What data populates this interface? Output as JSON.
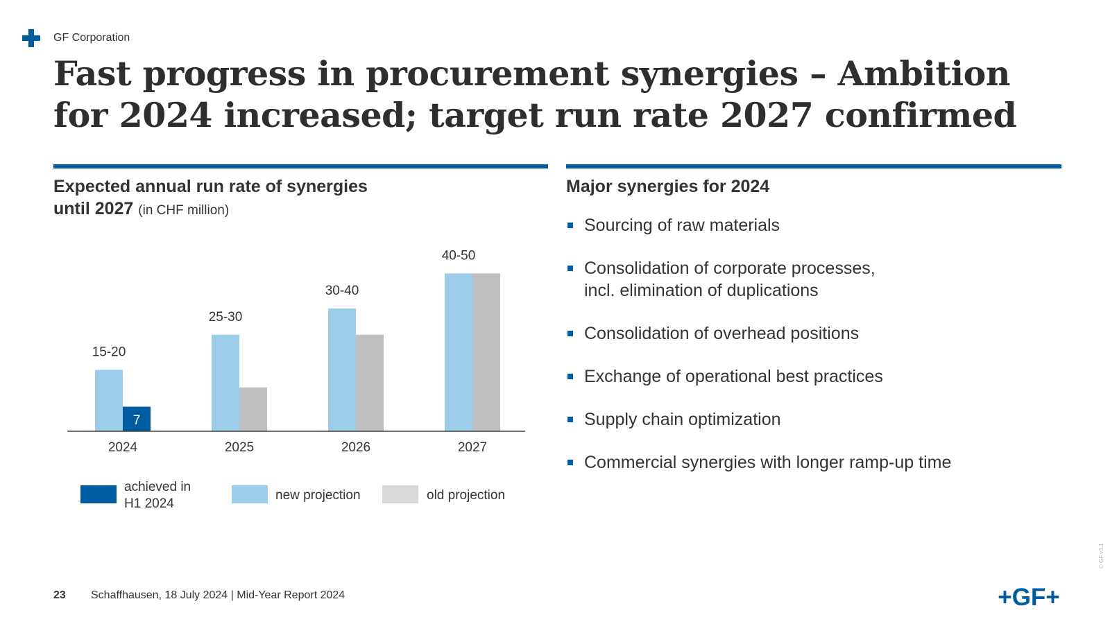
{
  "header": {
    "corporation": "GF Corporation",
    "title": "Fast progress in procurement synergies – Ambition for 2024 increased; target run rate 2027 confirmed"
  },
  "left_section": {
    "heading_line1": "Expected annual run rate of synergies",
    "heading_line2": "until 2027",
    "unit": "(in CHF million)"
  },
  "right_section": {
    "heading": "Major synergies for 2024",
    "items": [
      {
        "line1": "Sourcing of raw materials",
        "line2": ""
      },
      {
        "line1": "Consolidation of corporate processes,",
        "line2": "incl. elimination of duplications"
      },
      {
        "line1": "Consolidation of overhead positions",
        "line2": ""
      },
      {
        "line1": "Exchange of operational best practices",
        "line2": ""
      },
      {
        "line1": "Supply chain optimization",
        "line2": ""
      },
      {
        "line1": "Commercial synergies with longer ramp-up time",
        "line2": ""
      }
    ]
  },
  "chart_data": {
    "type": "bar",
    "categories": [
      "2024",
      "2025",
      "2026",
      "2027"
    ],
    "range_labels": [
      "15-20",
      "25-30",
      "30-40",
      "40-50"
    ],
    "series": [
      {
        "key": "new",
        "values": [
          17.5,
          27.5,
          35,
          45
        ],
        "color": "#9dcbea"
      },
      {
        "key": "old",
        "values": [
          null,
          12.5,
          27.5,
          45
        ],
        "color": "#bfbfbf"
      },
      {
        "key": "achieved",
        "values": [
          7,
          null,
          null,
          null
        ],
        "color": "#005ca0"
      }
    ],
    "achieved_label": "7",
    "ylim": [
      0,
      50
    ],
    "grid": false,
    "legend": {
      "position": "bottom",
      "entries": [
        {
          "line1": "achieved in",
          "line2": "H1 2024",
          "color": "#005ca0"
        },
        {
          "line1": "new projection",
          "line2": "",
          "color": "#9dcbea"
        },
        {
          "line1": "old projection",
          "line2": "",
          "color": "#d9d9d9"
        }
      ]
    }
  },
  "footer": {
    "page_number": "23",
    "text": "Schaffhausen, 18 July 2024 | Mid-Year Report 2024",
    "logo": "+GF+",
    "version": "© GF v3.1"
  },
  "colors": {
    "brand_blue": "#005ca0",
    "light_blue": "#9dcbea",
    "gray": "#bfbfbf",
    "text": "#333333"
  }
}
